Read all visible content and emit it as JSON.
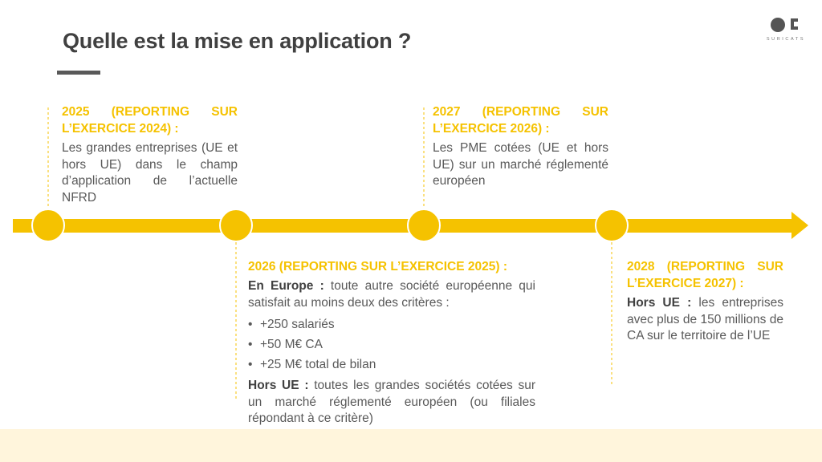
{
  "title": "Quelle est la mise en application ?",
  "logo": {
    "name": "SURICATS"
  },
  "colors": {
    "accent": "#f5c200",
    "text": "#595959",
    "band": "#fff5dc"
  },
  "milestones": [
    {
      "heading": "2025 (REPORTING SUR L’EXERCICE 2024) :",
      "text": "Les grandes entreprises (UE et hors UE) dans le champ d’application de l’actuelle NFRD"
    },
    {
      "heading": "2026 (REPORTING SUR L’EXERCICE 2025) :",
      "europe_label": "En Europe :",
      "europe_text": " toute autre société européenne qui satisfait au moins deux des critères :",
      "criteria": [
        "+250 salariés",
        "+50 M€ CA",
        "+25 M€ total de bilan"
      ],
      "outside_label": "Hors UE :",
      "outside_text": " toutes les grandes sociétés cotées sur un marché réglementé européen (ou filiales répondant à ce critère)"
    },
    {
      "heading": "2027 (REPORTING SUR L’EXERCICE 2026) :",
      "text": "Les PME cotées (UE et hors UE) sur un marché réglementé européen"
    },
    {
      "heading": "2028 (REPORTING SUR L’EXERCICE 2027) :",
      "outside_label": "Hors UE :",
      "outside_text": " les entreprises avec plus de 150 millions de CA sur le territoire de l’UE"
    }
  ]
}
